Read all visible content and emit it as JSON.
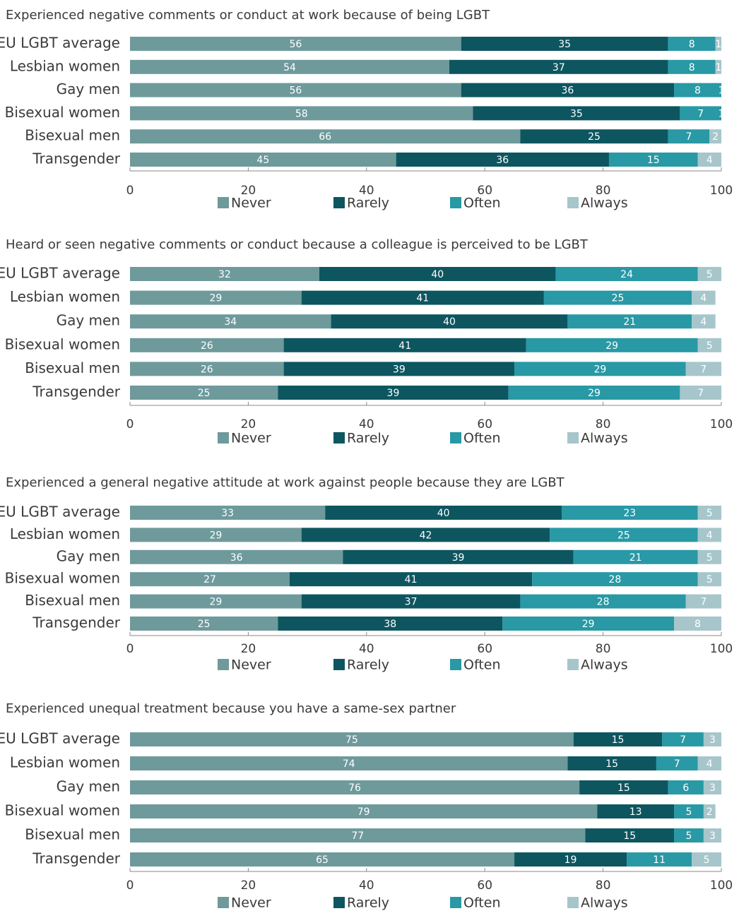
{
  "colors": {
    "Never": "#6e9a9c",
    "Rarely": "#0d5660",
    "Often": "#2899a5",
    "Always": "#a6c6cb"
  },
  "chart_data": [
    {
      "type": "bar",
      "orientation": "horizontal",
      "stacked": true,
      "title": "Experienced negative comments or conduct at work because of being LGBT",
      "categories": [
        "EU LGBT average",
        "Lesbian women",
        "Gay men",
        "Bisexual women",
        "Bisexual men",
        "Transgender"
      ],
      "series": [
        {
          "name": "Never",
          "values": [
            56,
            54,
            56,
            58,
            66,
            45
          ]
        },
        {
          "name": "Rarely",
          "values": [
            35,
            37,
            36,
            35,
            25,
            36
          ]
        },
        {
          "name": "Often",
          "values": [
            8,
            8,
            8,
            7,
            7,
            15
          ]
        },
        {
          "name": "Always",
          "values": [
            1,
            1,
            1,
            1,
            2,
            4
          ]
        }
      ],
      "xlim": [
        0,
        100
      ],
      "xticks": [
        "0",
        "20",
        "40",
        "60",
        "80",
        "100"
      ],
      "legend": "bottom"
    },
    {
      "type": "bar",
      "orientation": "horizontal",
      "stacked": true,
      "title": "Heard or seen negative comments or conduct because a colleague is perceived to be LGBT",
      "categories": [
        "EU LGBT average",
        "Lesbian women",
        "Gay men",
        "Bisexual women",
        "Bisexual men",
        "Transgender"
      ],
      "series": [
        {
          "name": "Never",
          "values": [
            32,
            29,
            34,
            26,
            26,
            25
          ]
        },
        {
          "name": "Rarely",
          "values": [
            40,
            41,
            40,
            41,
            39,
            39
          ]
        },
        {
          "name": "Often",
          "values": [
            24,
            25,
            21,
            29,
            29,
            29
          ]
        },
        {
          "name": "Always",
          "values": [
            5,
            4,
            4,
            5,
            7,
            7
          ]
        }
      ],
      "xlim": [
        0,
        100
      ],
      "xticks": [
        "0",
        "20",
        "40",
        "60",
        "80",
        "100"
      ],
      "legend": "bottom"
    },
    {
      "type": "bar",
      "orientation": "horizontal",
      "stacked": true,
      "title": "Experienced a general negative attitude at work against people because they are LGBT",
      "categories": [
        "EU LGBT average",
        "Lesbian women",
        "Gay men",
        "Bisexual women",
        "Bisexual men",
        "Transgender"
      ],
      "series": [
        {
          "name": "Never",
          "values": [
            33,
            29,
            36,
            27,
            29,
            25
          ]
        },
        {
          "name": "Rarely",
          "values": [
            40,
            42,
            39,
            41,
            37,
            38
          ]
        },
        {
          "name": "Often",
          "values": [
            23,
            25,
            21,
            28,
            28,
            29
          ]
        },
        {
          "name": "Always",
          "values": [
            5,
            4,
            5,
            5,
            7,
            8
          ]
        }
      ],
      "xlim": [
        0,
        100
      ],
      "xticks": [
        "0",
        "20",
        "40",
        "60",
        "80",
        "100"
      ],
      "legend": "bottom"
    },
    {
      "type": "bar",
      "orientation": "horizontal",
      "stacked": true,
      "title": "Experienced unequal treatment because you have a same-sex partner",
      "categories": [
        "EU LGBT average",
        "Lesbian women",
        "Gay men",
        "Bisexual women",
        "Bisexual men",
        "Transgender"
      ],
      "series": [
        {
          "name": "Never",
          "values": [
            75,
            74,
            76,
            79,
            77,
            65
          ]
        },
        {
          "name": "Rarely",
          "values": [
            15,
            15,
            15,
            13,
            15,
            19
          ]
        },
        {
          "name": "Often",
          "values": [
            7,
            7,
            6,
            5,
            5,
            11
          ]
        },
        {
          "name": "Always",
          "values": [
            3,
            4,
            3,
            2,
            3,
            5
          ]
        }
      ],
      "xlim": [
        0,
        100
      ],
      "xticks": [
        "0",
        "20",
        "40",
        "60",
        "80",
        "100"
      ],
      "legend": "bottom"
    }
  ]
}
